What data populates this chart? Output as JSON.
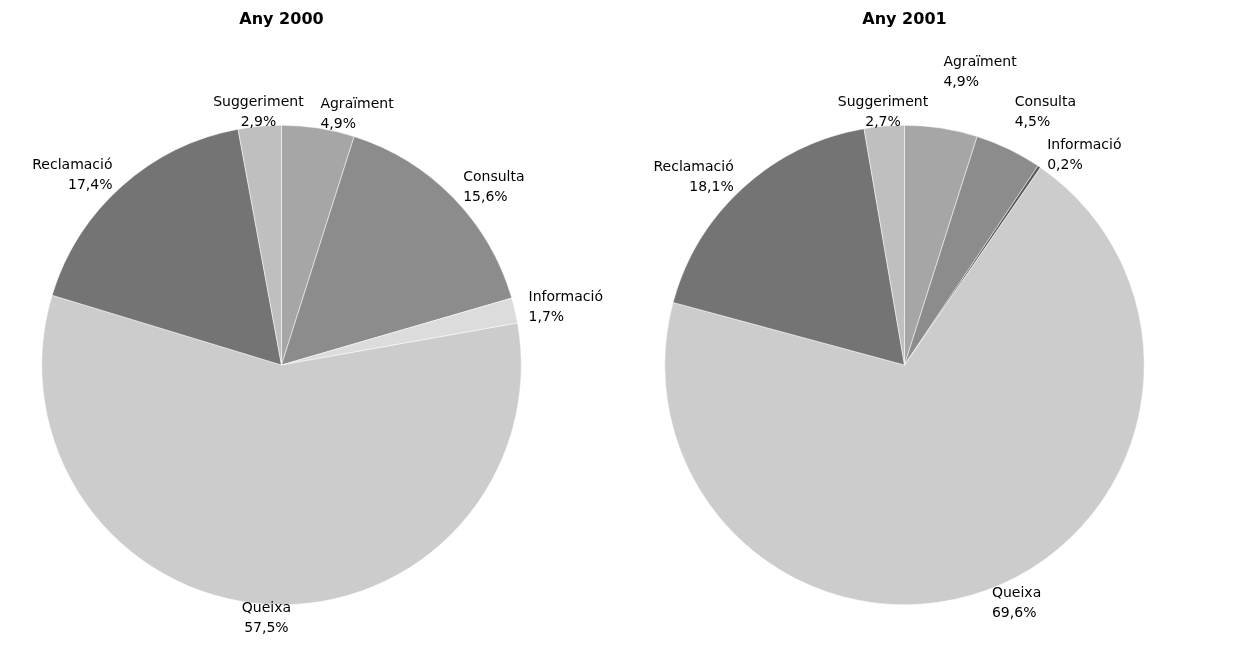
{
  "chart_data": [
    {
      "type": "pie",
      "title": "Any 2000",
      "categories": [
        "Agraïment",
        "Consulta",
        "Informació",
        "Queixa",
        "Reclamació",
        "Suggeriment"
      ],
      "values": [
        4.9,
        15.6,
        1.7,
        57.5,
        17.4,
        2.9
      ],
      "value_labels": [
        "4,9%",
        "15,6%",
        "1,7%",
        "57,5%",
        "17,4%",
        "2,9%"
      ],
      "colors": [
        "#a6a6a6",
        "#8c8c8c",
        "#dcdcdc",
        "#cccccc",
        "#747474",
        "#bfbfbf"
      ],
      "legend": false
    },
    {
      "type": "pie",
      "title": "Any 2001",
      "categories": [
        "Agraïment",
        "Consulta",
        "Informació",
        "Queixa",
        "Reclamació",
        "Suggeriment"
      ],
      "values": [
        4.9,
        4.5,
        0.2,
        69.6,
        18.1,
        2.7
      ],
      "value_labels": [
        "4,9%",
        "4,5%",
        "0,2%",
        "69,6%",
        "18,1%",
        "2,7%"
      ],
      "colors": [
        "#a6a6a6",
        "#8c8c8c",
        "#595959",
        "#cccccc",
        "#747474",
        "#bfbfbf"
      ],
      "legend": false
    }
  ]
}
